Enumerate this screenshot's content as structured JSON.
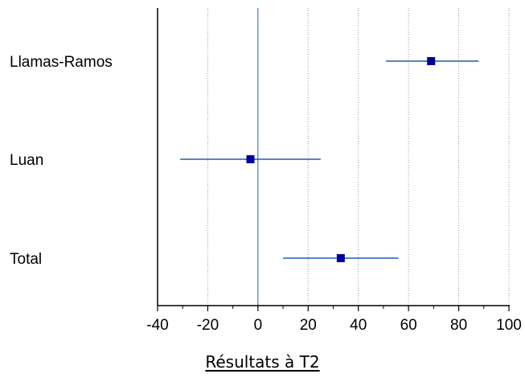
{
  "chart_data": {
    "type": "forest",
    "xlabel": "Résultats à T2",
    "xlim": [
      -40,
      100
    ],
    "xticks": [
      -40,
      -20,
      0,
      20,
      40,
      60,
      80,
      100
    ],
    "reference_line": 0,
    "grid": "vertical dotted",
    "rows": [
      {
        "label": "Llamas-Ramos",
        "estimate": 69,
        "ci_low": 51,
        "ci_high": 88
      },
      {
        "label": "Luan",
        "estimate": -3,
        "ci_low": -31,
        "ci_high": 25
      },
      {
        "label": "Total",
        "estimate": 33,
        "ci_low": 10,
        "ci_high": 56
      }
    ],
    "colors": {
      "marker": "#000099",
      "ci_line": "#1f5fa8",
      "reference": "#1f5fa8",
      "grid": "#999999",
      "axis": "#000000"
    }
  }
}
